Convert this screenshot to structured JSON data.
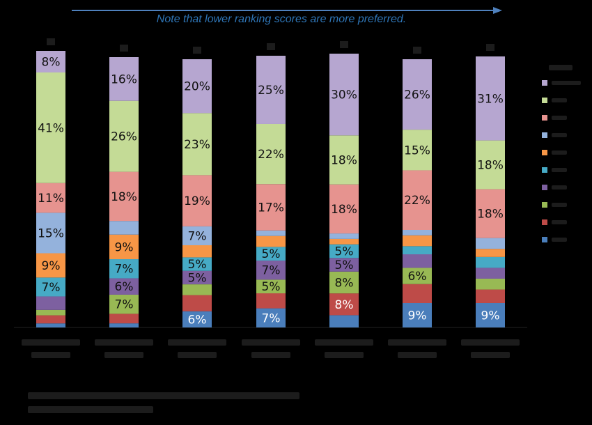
{
  "note": "Note that lower ranking scores are more preferred.",
  "colors": {
    "background": "#000000",
    "note_arrow": "#4f81bd",
    "note_text": "#2e75b6",
    "faint_text": "#1c1c1c"
  },
  "legend_position": "right",
  "chart_data": {
    "type": "bar",
    "stacked": true,
    "percent": true,
    "categories": [
      "",
      "",
      "",
      "",
      "",
      "",
      ""
    ],
    "bar_totals": [
      100,
      100,
      100,
      100,
      100,
      100,
      100
    ],
    "series": [
      {
        "key": "s1",
        "color": "#4a7ebb",
        "values": [
          1.5,
          1.5,
          6,
          7,
          4.5,
          9,
          9
        ],
        "labels": [
          "",
          "",
          "6%",
          "7%",
          "",
          "9%",
          "9%"
        ]
      },
      {
        "key": "s2",
        "color": "#be4b48",
        "values": [
          3,
          3.5,
          6,
          5.5,
          8,
          7,
          5
        ],
        "labels": [
          "",
          "",
          "",
          "",
          "8%",
          "",
          ""
        ]
      },
      {
        "key": "s3",
        "color": "#98b954",
        "values": [
          2,
          7,
          4,
          5,
          8,
          6,
          4
        ],
        "labels": [
          "",
          "7%",
          "",
          "5%",
          "8%",
          "6%",
          ""
        ]
      },
      {
        "key": "s4",
        "color": "#7d60a0",
        "values": [
          5,
          6,
          5,
          7,
          5,
          5,
          4
        ],
        "labels": [
          "",
          "6%",
          "5%",
          "7%",
          "5%",
          "",
          ""
        ]
      },
      {
        "key": "s5",
        "color": "#46aac5",
        "values": [
          7,
          7,
          5,
          5,
          5,
          3,
          4
        ],
        "labels": [
          "7%",
          "7%",
          "5%",
          "5%",
          "5%",
          "",
          ""
        ]
      },
      {
        "key": "s6",
        "color": "#f79646",
        "values": [
          9,
          9,
          4.5,
          4,
          2,
          4,
          3
        ],
        "labels": [
          "9%",
          "9%",
          "",
          "",
          "",
          "",
          ""
        ]
      },
      {
        "key": "s7",
        "color": "#94b2dc",
        "values": [
          15,
          5,
          7,
          2,
          2,
          2,
          4
        ],
        "labels": [
          "15%",
          "",
          "7%",
          "",
          "",
          "",
          ""
        ]
      },
      {
        "key": "s8",
        "color": "#e6938f",
        "values": [
          11,
          18,
          19,
          17,
          18,
          22,
          18
        ],
        "labels": [
          "11%",
          "18%",
          "19%",
          "17%",
          "18%",
          "22%",
          "18%"
        ]
      },
      {
        "key": "s9",
        "color": "#c4db96",
        "values": [
          41,
          26,
          23,
          22,
          18,
          15,
          18
        ],
        "labels": [
          "41%",
          "26%",
          "23%",
          "22%",
          "18%",
          "15%",
          "18%"
        ]
      },
      {
        "key": "s10",
        "color": "#b6a6d0",
        "values": [
          8,
          16,
          20,
          25,
          30,
          26,
          31
        ],
        "labels": [
          "8%",
          "16%",
          "20%",
          "25%",
          "30%",
          "26%",
          "31%"
        ]
      }
    ]
  }
}
